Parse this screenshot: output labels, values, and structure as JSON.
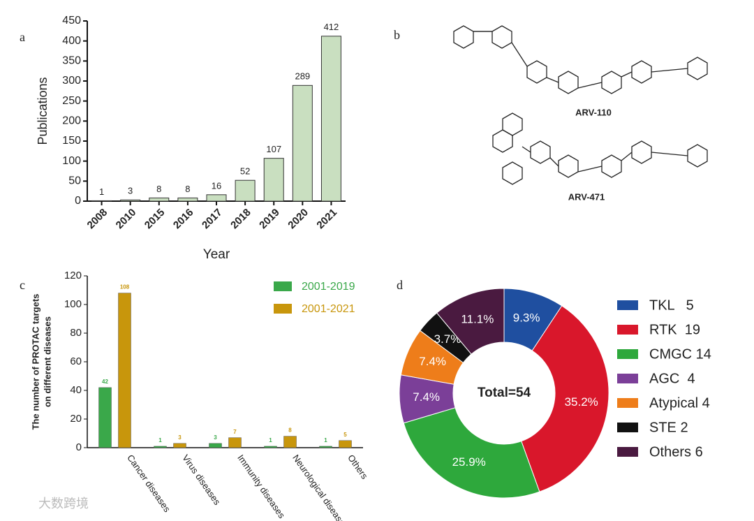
{
  "chart_data": [
    {
      "type": "bar",
      "label": "a",
      "categories": [
        "2008",
        "2010",
        "2015",
        "2016",
        "2017",
        "2018",
        "2019",
        "2020",
        "2021"
      ],
      "values": [
        1,
        3,
        8,
        8,
        16,
        52,
        107,
        289,
        412
      ],
      "color": "#c9dfc0",
      "ylabel": "Publications",
      "xlabel": "Year",
      "ylim": [
        0,
        450
      ],
      "yticks": [
        0,
        50,
        100,
        150,
        200,
        250,
        300,
        350,
        400,
        450
      ]
    },
    {
      "type": "grouped-bar",
      "label": "c",
      "categories": [
        "Cancer diseases",
        "Virus diseases",
        "Immunity diseases",
        "Neurological disease",
        "Others"
      ],
      "series": [
        {
          "name": "2001-2019",
          "color": "#3aa84a",
          "values": [
            42,
            1,
            3,
            1,
            1
          ]
        },
        {
          "name": "2001-2021",
          "color": "#c8960c",
          "values": [
            108,
            3,
            7,
            8,
            5
          ]
        }
      ],
      "ylabel": [
        "The number of PROTAC targets",
        "on different diseases"
      ],
      "ylim": [
        0,
        120
      ],
      "yticks": [
        0,
        20,
        40,
        60,
        80,
        100,
        120
      ]
    },
    {
      "type": "donut",
      "label": "d",
      "categories": [
        "TKL   5",
        "RTK  19",
        "CMGC 14",
        "AGC  4",
        "Atypical 4",
        "STE 2",
        "Others 6"
      ],
      "values": [
        9.3,
        35.2,
        25.9,
        7.4,
        7.4,
        3.7,
        11.1
      ],
      "value_labels": [
        "9.3%",
        "35.2%",
        "25.9%",
        "7.4%",
        "7.4%",
        "3.7%",
        "11.1%"
      ],
      "colors": [
        "#1f4fa0",
        "#d9172b",
        "#2ea83c",
        "#7b3f98",
        "#ee7d1a",
        "#111111",
        "#4a1a40"
      ],
      "center_text": "Total=54"
    }
  ],
  "structures": {
    "label": "b",
    "molecules": [
      "ARV-110",
      "ARV-471"
    ]
  },
  "watermark": "大数跨境"
}
